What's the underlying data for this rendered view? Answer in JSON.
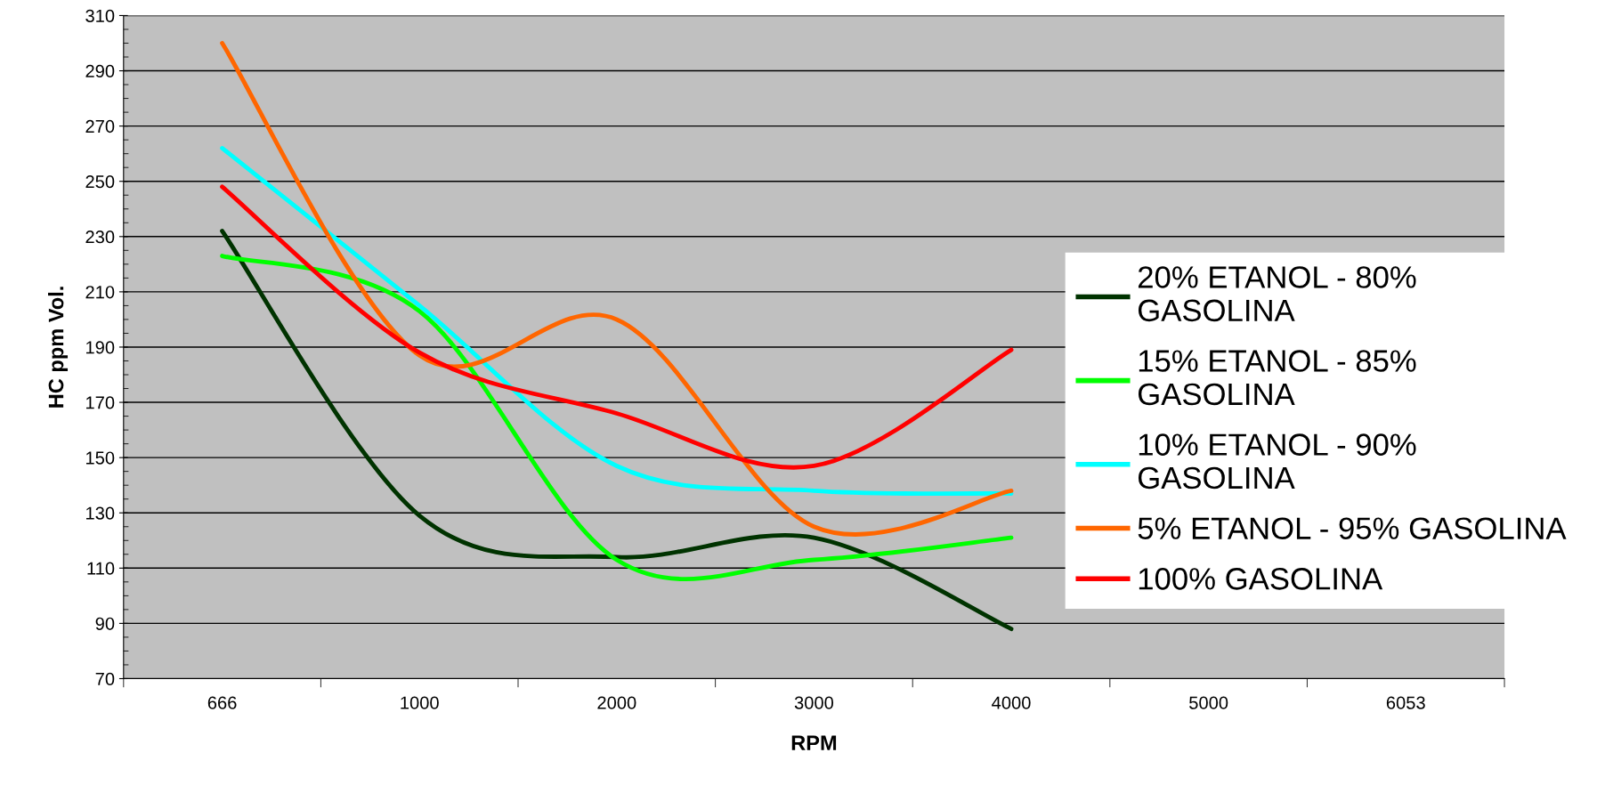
{
  "chart_data": {
    "type": "line",
    "xlabel": "RPM",
    "ylabel": "HC ppm Vol.",
    "categories": [
      "666",
      "1000",
      "2000",
      "3000",
      "4000",
      "5000",
      "6053"
    ],
    "series": [
      {
        "name": "20% ETANOL - 80% GASOLINA",
        "color": "#003300",
        "values": [
          232,
          129,
          114,
          121,
          88,
          null,
          null
        ]
      },
      {
        "name": "15% ETANOL - 85% GASOLINA",
        "color": "#00ff00",
        "values": [
          223,
          203,
          113,
          113,
          121,
          null,
          null
        ]
      },
      {
        "name": "10% ETANOL - 90% GASOLINA",
        "color": "#00ffff",
        "values": [
          262,
          205,
          147,
          138,
          137,
          null,
          null
        ]
      },
      {
        "name": "5% ETANOL - 95% GASOLINA",
        "color": "#ff6600",
        "values": [
          300,
          187,
          200,
          125,
          138,
          null,
          null
        ]
      },
      {
        "name": "100% GASOLINA",
        "color": "#ff0000",
        "values": [
          248,
          188,
          166,
          147,
          189,
          null,
          null
        ]
      }
    ],
    "ylim": [
      70,
      310
    ],
    "yticks": [
      70,
      90,
      110,
      130,
      150,
      170,
      190,
      210,
      230,
      250,
      270,
      290,
      310
    ],
    "grid": "y",
    "legend": "right",
    "marker": "none",
    "line_style": "solid"
  }
}
